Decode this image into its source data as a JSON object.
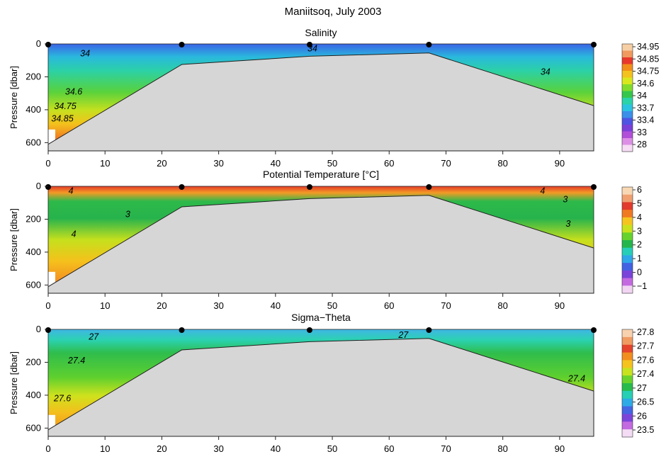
{
  "figure": {
    "title": "Maniitsoq, July 2003"
  },
  "chart_data": [
    {
      "type": "heatmap",
      "title": "Salinity",
      "xlabel": "",
      "ylabel": "Pressure [dbar]",
      "xlim": [
        0,
        96
      ],
      "ylim": [
        650,
        0
      ],
      "x_ticks": [
        "0",
        "10",
        "20",
        "30",
        "40",
        "50",
        "60",
        "70",
        "80",
        "90"
      ],
      "y_ticks": [
        "0",
        "200",
        "400",
        "600"
      ],
      "stations_x": [
        0,
        23.5,
        46,
        67,
        96
      ],
      "bottom_profile": {
        "x": [
          0,
          23.5,
          46,
          67,
          96
        ],
        "y": [
          610,
          125,
          75,
          55,
          375
        ]
      },
      "colorbar": {
        "labels": [
          "34.95",
          "34.85",
          "34.75",
          "34.6",
          "34",
          "33.7",
          "33.4",
          "33",
          "28"
        ],
        "colors": [
          "#f7cfa5",
          "#f09a5f",
          "#e8382b",
          "#f28e1a",
          "#f4c21c",
          "#d9e81d",
          "#82dc2c",
          "#34c74c",
          "#2ad3a8",
          "#2ac4e1",
          "#3a8fe8",
          "#4f54e2",
          "#7a40d8",
          "#b24fd9",
          "#dc8fe5",
          "#f6dcf4"
        ]
      },
      "contours": [
        {
          "label": "34",
          "x": 6.5,
          "y": 58
        },
        {
          "label": "34",
          "x": 46.5,
          "y": 28
        },
        {
          "label": "34",
          "x": 87.5,
          "y": 170
        },
        {
          "label": "34.6",
          "x": 4.5,
          "y": 290
        },
        {
          "label": "34.75",
          "x": 3,
          "y": 378
        },
        {
          "label": "34.85",
          "x": 2.5,
          "y": 455
        }
      ],
      "field": {
        "surface": 33.6,
        "mid": 34.3,
        "deep": 34.92
      }
    },
    {
      "type": "heatmap",
      "title": "Potential Temperature [°C]",
      "xlabel": "",
      "ylabel": "Pressure [dbar]",
      "xlim": [
        0,
        96
      ],
      "ylim": [
        650,
        0
      ],
      "x_ticks": [
        "0",
        "10",
        "20",
        "30",
        "40",
        "50",
        "60",
        "70",
        "80",
        "90"
      ],
      "y_ticks": [
        "0",
        "200",
        "400",
        "600"
      ],
      "stations_x": [
        0,
        23.5,
        46,
        67,
        96
      ],
      "bottom_profile": {
        "x": [
          0,
          23.5,
          46,
          67,
          96
        ],
        "y": [
          610,
          125,
          75,
          55,
          375
        ]
      },
      "colorbar": {
        "labels": [
          "6",
          "5",
          "4",
          "3",
          "2",
          "1",
          "0",
          "−1"
        ],
        "colors": [
          "#f8d8b4",
          "#f0a070",
          "#e23a2c",
          "#f07a22",
          "#f6c41f",
          "#c9e21d",
          "#66d22d",
          "#24b64c",
          "#27cfb9",
          "#2fa7e8",
          "#4262e3",
          "#7a44da",
          "#c46ae0",
          "#f1d5f3"
        ]
      },
      "contours": [
        {
          "label": "4",
          "x": 4,
          "y": 28
        },
        {
          "label": "3",
          "x": 14,
          "y": 170
        },
        {
          "label": "4",
          "x": 4.5,
          "y": 290
        },
        {
          "label": "4",
          "x": 87,
          "y": 28
        },
        {
          "label": "3",
          "x": 91,
          "y": 80
        },
        {
          "label": "3",
          "x": 91.5,
          "y": 228
        }
      ],
      "field": {
        "surface": 5.2,
        "mid": 2.6,
        "deep": 4.4
      }
    },
    {
      "type": "heatmap",
      "title": "Sigma−Theta",
      "xlabel": "",
      "ylabel": "Pressure [dbar]",
      "xlim": [
        0,
        96
      ],
      "ylim": [
        650,
        0
      ],
      "x_ticks": [
        "0",
        "10",
        "20",
        "30",
        "40",
        "50",
        "60",
        "70",
        "80",
        "90"
      ],
      "y_ticks": [
        "0",
        "200",
        "400",
        "600"
      ],
      "stations_x": [
        0,
        23.5,
        46,
        67,
        96
      ],
      "bottom_profile": {
        "x": [
          0,
          23.5,
          46,
          67,
          96
        ],
        "y": [
          610,
          125,
          75,
          55,
          375
        ]
      },
      "colorbar": {
        "labels": [
          "27.8",
          "27.7",
          "27.6",
          "27.4",
          "27",
          "26.5",
          "26",
          "23.5"
        ],
        "colors": [
          "#f8d2ae",
          "#ef9b62",
          "#e4432c",
          "#f28e1e",
          "#f5c31c",
          "#c8e21e",
          "#6bd22b",
          "#27bb4c",
          "#27cfb5",
          "#2eaae7",
          "#4466e3",
          "#7b45d9",
          "#c46ae0",
          "#f3dcf4"
        ]
      },
      "contours": [
        {
          "label": "27",
          "x": 8,
          "y": 45
        },
        {
          "label": "27",
          "x": 62.5,
          "y": 35
        },
        {
          "label": "27.4",
          "x": 5,
          "y": 190
        },
        {
          "label": "27.4",
          "x": 93,
          "y": 300
        },
        {
          "label": "27.6",
          "x": 2.5,
          "y": 420
        }
      ],
      "field": {
        "surface": 26.6,
        "mid": 27.25,
        "deep": 27.65
      }
    }
  ]
}
